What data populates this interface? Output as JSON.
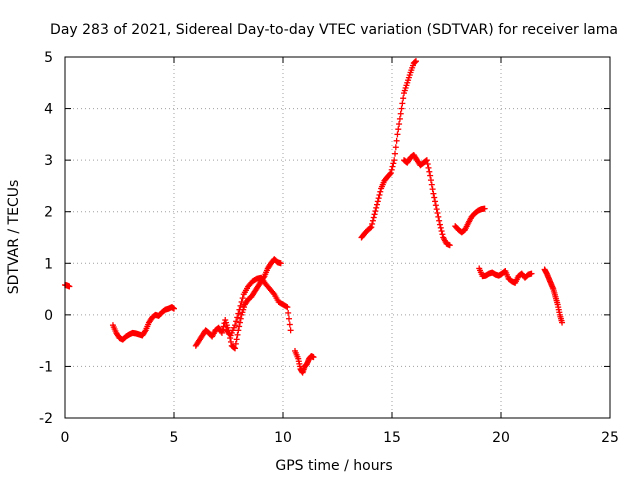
{
  "chart_data": {
    "type": "scatter",
    "title": "Day 283 of 2021, Sidereal Day-to-day VTEC variation (SDTVAR) for receiver lama",
    "xlabel": "GPS time / hours",
    "ylabel": "SDTVAR / TECUs",
    "xlim": [
      0,
      25
    ],
    "ylim": [
      -2,
      5
    ],
    "xticks": [
      0,
      5,
      10,
      15,
      20,
      25
    ],
    "yticks": [
      -2,
      -1,
      0,
      1,
      2,
      3,
      4,
      5
    ],
    "grid": true,
    "marker": "plus",
    "color": "#ff0000",
    "series": [
      {
        "name": "seg1",
        "x": [
          0.0,
          0.1,
          0.2
        ],
        "y": [
          0.58,
          0.57,
          0.55
        ]
      },
      {
        "name": "seg2",
        "x": [
          2.2,
          2.35,
          2.5,
          2.65,
          2.8,
          2.95,
          3.1,
          3.25,
          3.4,
          3.55,
          3.7,
          3.85,
          4.0,
          4.15,
          4.3,
          4.45,
          4.6,
          4.75,
          4.9,
          5.0
        ],
        "y": [
          -0.2,
          -0.35,
          -0.45,
          -0.48,
          -0.42,
          -0.38,
          -0.35,
          -0.36,
          -0.38,
          -0.4,
          -0.3,
          -0.15,
          -0.05,
          0.0,
          -0.02,
          0.05,
          0.1,
          0.12,
          0.15,
          0.12
        ]
      },
      {
        "name": "seg3",
        "x": [
          6.0,
          6.15,
          6.3,
          6.45,
          6.6,
          6.75,
          6.9,
          7.05,
          7.2,
          7.35,
          7.5,
          7.65,
          7.8,
          7.95,
          8.1,
          8.25,
          8.4,
          8.55,
          8.7,
          8.85,
          9.0,
          9.15,
          9.3,
          9.45,
          9.6,
          9.75,
          9.9
        ],
        "y": [
          -0.6,
          -0.5,
          -0.4,
          -0.3,
          -0.35,
          -0.42,
          -0.3,
          -0.25,
          -0.35,
          -0.1,
          -0.3,
          -0.6,
          -0.65,
          -0.3,
          0.0,
          0.2,
          0.3,
          0.35,
          0.45,
          0.55,
          0.65,
          0.75,
          0.9,
          1.0,
          1.08,
          1.02,
          1.0
        ]
      },
      {
        "name": "seg3b",
        "x": [
          7.4,
          7.6,
          7.8,
          8.0,
          8.2,
          8.4,
          8.6,
          8.8,
          9.0,
          9.2,
          9.4,
          9.6,
          9.8,
          10.0,
          10.2,
          10.35
        ],
        "y": [
          -0.3,
          -0.4,
          -0.2,
          0.1,
          0.4,
          0.55,
          0.65,
          0.7,
          0.72,
          0.6,
          0.5,
          0.4,
          0.25,
          0.2,
          0.15,
          -0.3
        ]
      },
      {
        "name": "seg4",
        "x": [
          10.55,
          10.7,
          10.8,
          10.9,
          11.0,
          11.1,
          11.2,
          11.3,
          11.4
        ],
        "y": [
          -0.7,
          -0.85,
          -1.05,
          -1.12,
          -1.0,
          -0.95,
          -0.85,
          -0.8,
          -0.82
        ]
      },
      {
        "name": "seg5",
        "x": [
          13.6,
          13.75,
          13.9,
          14.05,
          14.2,
          14.35,
          14.5,
          14.65,
          14.8,
          14.95,
          15.1,
          15.25,
          15.4,
          15.55,
          15.7,
          15.85,
          16.0,
          16.1
        ],
        "y": [
          1.5,
          1.58,
          1.65,
          1.7,
          1.95,
          2.2,
          2.45,
          2.6,
          2.68,
          2.75,
          3.0,
          3.5,
          3.9,
          4.3,
          4.5,
          4.7,
          4.88,
          4.92
        ]
      },
      {
        "name": "seg6",
        "x": [
          15.55,
          15.7,
          15.85,
          16.0,
          16.15,
          16.3,
          16.45,
          16.6,
          16.75,
          16.9,
          17.05,
          17.2,
          17.35,
          17.5,
          17.65
        ],
        "y": [
          3.0,
          2.95,
          3.05,
          3.1,
          3.0,
          2.9,
          2.95,
          3.0,
          2.7,
          2.35,
          2.05,
          1.75,
          1.5,
          1.38,
          1.35
        ]
      },
      {
        "name": "seg7",
        "x": [
          17.9,
          18.05,
          18.2,
          18.35,
          18.5,
          18.65,
          18.8,
          18.95,
          19.1,
          19.25
        ],
        "y": [
          1.72,
          1.65,
          1.6,
          1.65,
          1.78,
          1.9,
          1.97,
          2.02,
          2.05,
          2.06
        ]
      },
      {
        "name": "seg8",
        "x": [
          19.0,
          19.15,
          19.3,
          19.45,
          19.6,
          19.75,
          19.9,
          20.05,
          20.2,
          20.35,
          20.5,
          20.65,
          20.8,
          20.95,
          21.1,
          21.25,
          21.4
        ],
        "y": [
          0.9,
          0.75,
          0.76,
          0.8,
          0.82,
          0.78,
          0.76,
          0.8,
          0.85,
          0.7,
          0.65,
          0.62,
          0.75,
          0.8,
          0.72,
          0.78,
          0.8
        ]
      },
      {
        "name": "seg9",
        "x": [
          22.0,
          22.1,
          22.2,
          22.3,
          22.4,
          22.5,
          22.6,
          22.7,
          22.8
        ],
        "y": [
          0.88,
          0.8,
          0.7,
          0.6,
          0.5,
          0.35,
          0.2,
          0.0,
          -0.15
        ]
      }
    ]
  }
}
